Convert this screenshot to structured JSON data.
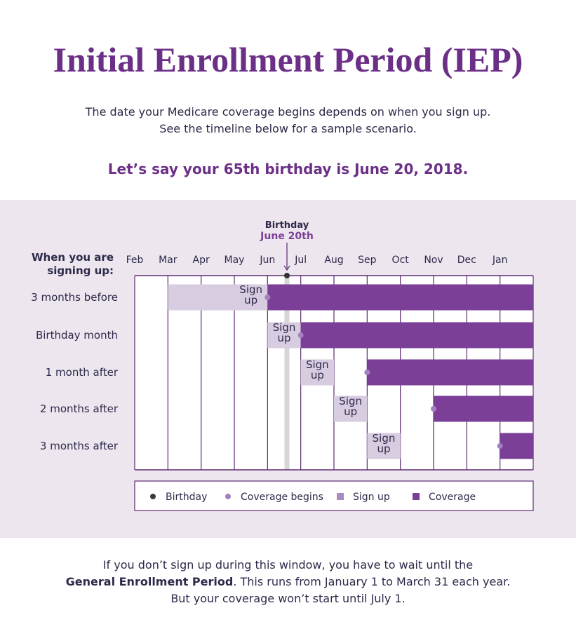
{
  "header": {
    "title": "Initial Enrollment Period (IEP)",
    "intro": [
      "The date your Medicare coverage begins depends on when you sign up.",
      "See the timeline below for a sample scenario."
    ],
    "scenario": "Let’s say your 65th birthday is June 20, 2018."
  },
  "timeline": {
    "birthday_label": "Birthday",
    "birthday_date": "June 20th",
    "row_header": "When you are signing up:",
    "months": [
      "Feb",
      "Mar",
      "Apr",
      "May",
      "Jun",
      "Jul",
      "Aug",
      "Sep",
      "Oct",
      "Nov",
      "Dec",
      "Jan"
    ],
    "rows": [
      {
        "label": "3 months before",
        "sign_up": "Sign up"
      },
      {
        "label": "Birthday month",
        "sign_up": "Sign up"
      },
      {
        "label": "1 month after",
        "sign_up": "Sign up"
      },
      {
        "label": "2 months after",
        "sign_up": "Sign up"
      },
      {
        "label": "3 months after",
        "sign_up": "Sign up"
      }
    ]
  },
  "legend": [
    "Birthday",
    "Coverage begins",
    "Sign up",
    "Coverage"
  ],
  "footer": {
    "line1": "If you don’t sign up during this window, you have to wait until the",
    "bold": "General Enrollment Period",
    "line2_rest": ". This runs from January 1 to March 31 each year.",
    "line3": "But your coverage won’t start until July 1."
  }
}
